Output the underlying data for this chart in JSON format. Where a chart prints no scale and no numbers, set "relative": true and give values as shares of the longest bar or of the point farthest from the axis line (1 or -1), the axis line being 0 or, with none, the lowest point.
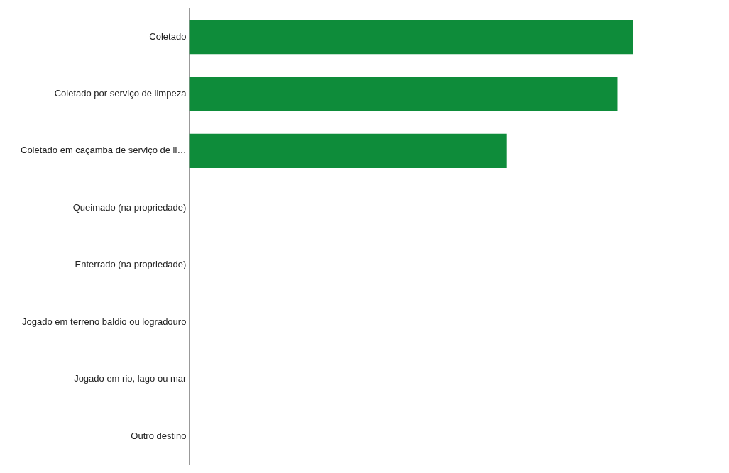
{
  "chart_data": {
    "type": "bar",
    "orientation": "horizontal",
    "relative": true,
    "categories": [
      "Coletado",
      "Coletado por serviço de limpeza",
      "Coletado em caçamba de serviço de li…",
      "Queimado (na propriedade)",
      "Enterrado (na propriedade)",
      "Jogado em terreno baldio ou logradouro",
      "Jogado em rio, lago ou mar",
      "Outro destino"
    ],
    "values": [
      1,
      0.964,
      0.715,
      0,
      0,
      0,
      0,
      0
    ],
    "color": "#0e8c3a",
    "legend": false
  }
}
